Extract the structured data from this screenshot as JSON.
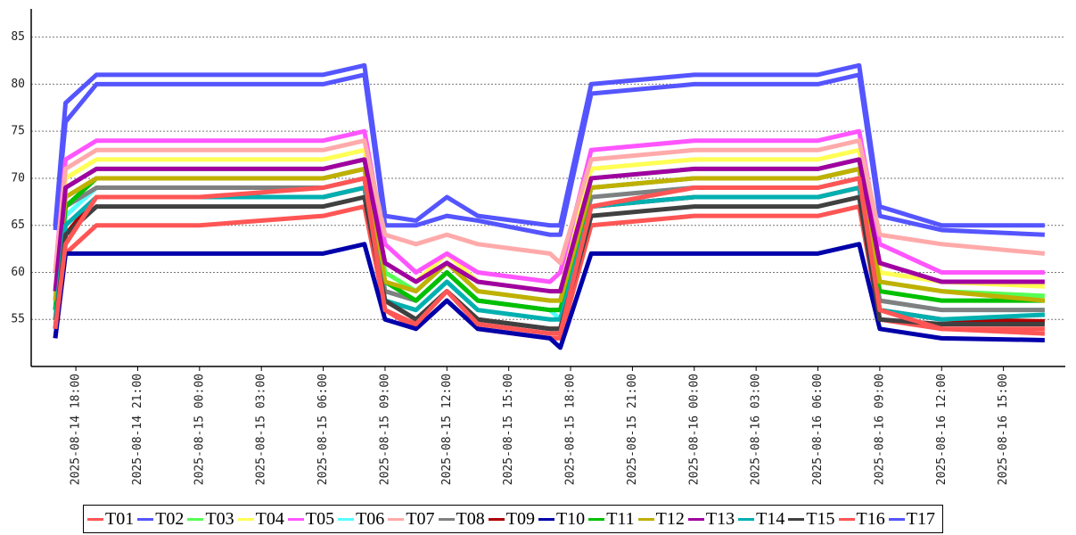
{
  "chart_data": {
    "type": "line",
    "x": [
      "2025-08-14 17:00",
      "2025-08-14 17:30",
      "2025-08-14 19:00",
      "2025-08-15 00:00",
      "2025-08-15 06:00",
      "2025-08-15 08:00",
      "2025-08-15 09:00",
      "2025-08-15 10:30",
      "2025-08-15 12:00",
      "2025-08-15 13:30",
      "2025-08-15 17:00",
      "2025-08-15 17:30",
      "2025-08-15 19:00",
      "2025-08-16 00:00",
      "2025-08-16 06:00",
      "2025-08-16 08:00",
      "2025-08-16 09:00",
      "2025-08-16 12:00",
      "2025-08-16 17:00"
    ],
    "xlim": [
      "2025-08-14 15:50",
      "2025-08-16 18:00"
    ],
    "xticks": [
      "2025-08-14 18:00",
      "2025-08-14 21:00",
      "2025-08-15 00:00",
      "2025-08-15 03:00",
      "2025-08-15 06:00",
      "2025-08-15 09:00",
      "2025-08-15 12:00",
      "2025-08-15 15:00",
      "2025-08-15 18:00",
      "2025-08-15 21:00",
      "2025-08-16 00:00",
      "2025-08-16 03:00",
      "2025-08-16 06:00",
      "2025-08-16 09:00",
      "2025-08-16 12:00",
      "2025-08-16 15:00"
    ],
    "ylim": [
      50,
      88
    ],
    "yticks": [
      55,
      60,
      65,
      70,
      75,
      80,
      85
    ],
    "grid": true,
    "series": [
      {
        "name": "T01",
        "color": "#ff5555",
        "values": [
          53,
          62,
          65,
          65,
          66,
          67,
          56,
          54,
          57,
          54,
          53,
          53,
          65,
          66,
          66,
          67,
          55,
          54,
          53.5
        ]
      },
      {
        "name": "T02",
        "color": "#5555ff",
        "values": [
          64.5,
          76,
          80,
          80,
          80,
          81,
          65,
          65,
          66,
          65.5,
          64,
          64,
          79,
          80,
          80,
          81,
          66,
          64.5,
          64
        ]
      },
      {
        "name": "T03",
        "color": "#55ff55",
        "values": [
          57,
          69,
          71,
          71,
          71,
          72,
          60,
          58,
          61,
          58,
          57,
          57,
          70,
          71,
          71,
          72,
          59,
          58,
          57.5
        ]
      },
      {
        "name": "T04",
        "color": "#ffff55",
        "values": [
          58,
          70,
          72,
          72,
          72,
          73,
          61,
          59,
          62,
          59,
          58,
          58,
          71,
          72,
          72,
          73,
          60,
          59,
          58.5
        ]
      },
      {
        "name": "T05",
        "color": "#ff55ff",
        "values": [
          60,
          72,
          74,
          74,
          74,
          75,
          63,
          60,
          62,
          60,
          59,
          60,
          73,
          74,
          74,
          75,
          63,
          60,
          60
        ]
      },
      {
        "name": "T06",
        "color": "#55ffff",
        "values": [
          55,
          66,
          69,
          69,
          69,
          70,
          58,
          57,
          60,
          57,
          56,
          55,
          68,
          69,
          69,
          70,
          57,
          56,
          56
        ]
      },
      {
        "name": "T07",
        "color": "#ffaaaa",
        "values": [
          60,
          71,
          73,
          73,
          73,
          74,
          64,
          63,
          64,
          63,
          62,
          61,
          72,
          73,
          73,
          74,
          64,
          63,
          62
        ]
      },
      {
        "name": "T08",
        "color": "#808080",
        "values": [
          56,
          67,
          69,
          69,
          69,
          70,
          58,
          57,
          60,
          57,
          56,
          56,
          68,
          69,
          69,
          70,
          57,
          56,
          56
        ]
      },
      {
        "name": "T09",
        "color": "#aa0000",
        "values": [
          54,
          64,
          68,
          68,
          68,
          69,
          57,
          55,
          58,
          55,
          54,
          54,
          67,
          68,
          68,
          69,
          56,
          55,
          54.8
        ]
      },
      {
        "name": "T10",
        "color": "#0000aa",
        "values": [
          53,
          62,
          62,
          62,
          62,
          63,
          55,
          54,
          57,
          54,
          53,
          52,
          62,
          62,
          62,
          63,
          54,
          53,
          52.8
        ]
      },
      {
        "name": "T11",
        "color": "#00c000",
        "values": [
          56,
          67,
          70,
          70,
          70,
          71,
          59,
          57,
          60,
          57,
          56,
          56,
          69,
          70,
          70,
          71,
          58,
          57,
          57
        ]
      },
      {
        "name": "T12",
        "color": "#c0b000",
        "values": [
          57,
          68,
          70,
          70,
          70,
          71,
          59,
          58,
          61,
          58,
          57,
          57,
          69,
          70,
          70,
          71,
          59,
          58,
          57
        ]
      },
      {
        "name": "T13",
        "color": "#a000a0",
        "values": [
          58,
          69,
          71,
          71,
          71,
          72,
          61,
          59,
          61,
          59,
          58,
          58,
          70,
          71,
          71,
          72,
          61,
          59,
          59
        ]
      },
      {
        "name": "T14",
        "color": "#00b0b0",
        "values": [
          55,
          65,
          68,
          68,
          68,
          69,
          57,
          56,
          59,
          56,
          55,
          55,
          67,
          68,
          68,
          69,
          56,
          55,
          55.5
        ]
      },
      {
        "name": "T15",
        "color": "#404040",
        "values": [
          54,
          64,
          67,
          67,
          67,
          68,
          57,
          55,
          58,
          55,
          54,
          54,
          66,
          67,
          67,
          68,
          55,
          54.5,
          54.5
        ]
      },
      {
        "name": "T16",
        "color": "#ff5555",
        "values": [
          54,
          63,
          68,
          68,
          69,
          70,
          56,
          54.5,
          58,
          54.5,
          53.5,
          53.5,
          67,
          69,
          69,
          70,
          56,
          54,
          54
        ]
      },
      {
        "name": "T17",
        "color": "#5555ff",
        "values": [
          65,
          78,
          81,
          81,
          81,
          82,
          66,
          65.5,
          68,
          66,
          65,
          65,
          80,
          81,
          81,
          82,
          67,
          65,
          65
        ]
      }
    ]
  }
}
